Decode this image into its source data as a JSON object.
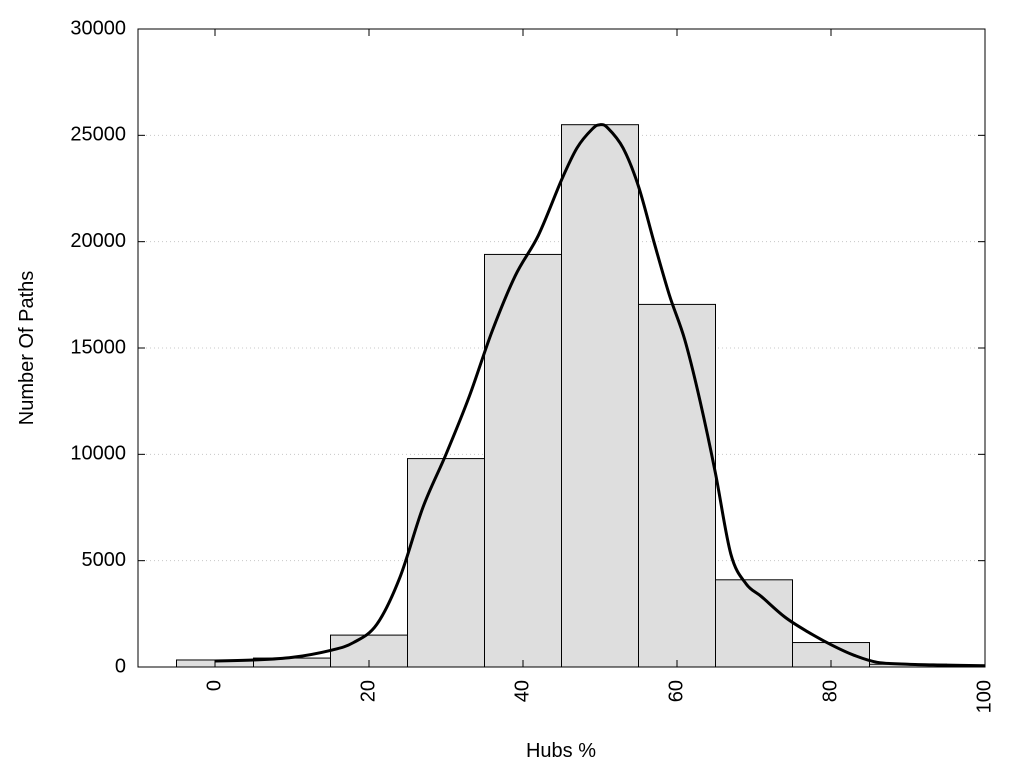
{
  "chart_data": {
    "type": "bar",
    "title": "",
    "xlabel": "Hubs %",
    "ylabel": "Number Of Paths",
    "xlim": [
      -10,
      100
    ],
    "ylim": [
      0,
      30000
    ],
    "x_ticks": [
      0,
      20,
      40,
      60,
      80,
      100
    ],
    "y_ticks": [
      0,
      5000,
      10000,
      15000,
      20000,
      25000,
      30000
    ],
    "grid": "horizontal-dotted",
    "bar_color": "#dedede",
    "bar_edge_color": "#000000",
    "line_color": "#000000",
    "bars": [
      {
        "x0": -5,
        "x1": 5,
        "value": 330
      },
      {
        "x0": 5,
        "x1": 15,
        "value": 420
      },
      {
        "x0": 15,
        "x1": 25,
        "value": 1500
      },
      {
        "x0": 25,
        "x1": 35,
        "value": 9800
      },
      {
        "x0": 35,
        "x1": 45,
        "value": 19400
      },
      {
        "x0": 45,
        "x1": 55,
        "value": 25500
      },
      {
        "x0": 55,
        "x1": 65,
        "value": 17050
      },
      {
        "x0": 65,
        "x1": 75,
        "value": 4100
      },
      {
        "x0": 75,
        "x1": 85,
        "value": 1150
      },
      {
        "x0": 85,
        "x1": 95,
        "value": 130
      }
    ],
    "density_curve": {
      "x": [
        0,
        5,
        10,
        15,
        18,
        21,
        24,
        27,
        30,
        33,
        36,
        39,
        42,
        45,
        47,
        49,
        50,
        51,
        53,
        55,
        57,
        59,
        61,
        63,
        65,
        67,
        69,
        71,
        74,
        77,
        80,
        83,
        86,
        90,
        95,
        100
      ],
      "y": [
        280,
        330,
        450,
        780,
        1150,
        2000,
        4200,
        7500,
        10000,
        12700,
        15800,
        18400,
        20300,
        22900,
        24400,
        25300,
        25500,
        25350,
        24400,
        22600,
        20000,
        17500,
        15400,
        12500,
        9100,
        5300,
        3900,
        3300,
        2350,
        1650,
        1050,
        550,
        220,
        130,
        90,
        60
      ]
    }
  }
}
